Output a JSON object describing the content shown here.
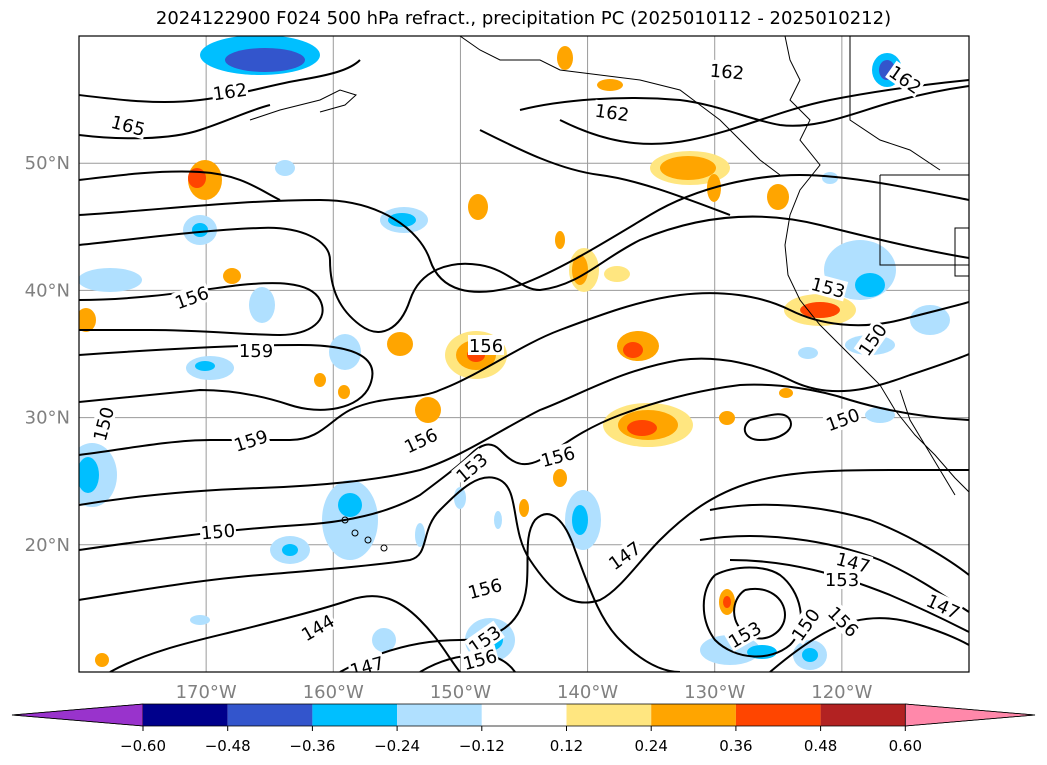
{
  "chart_data": {
    "type": "heatmap",
    "title": "2024122900 F024 500 hPa refract., precipitation PC (2025010112 - 2025010212)",
    "map": {
      "lon_range": [
        -180,
        -110
      ],
      "lat_range": [
        10,
        60
      ],
      "lon_ticks": [
        "170°W",
        "160°W",
        "150°W",
        "140°W",
        "130°W",
        "120°W"
      ],
      "lat_ticks": [
        "50°N",
        "40°N",
        "30°N",
        "20°N"
      ],
      "grid": true
    },
    "contours": {
      "field": "500 hPa refractivity",
      "levels": [
        144,
        147,
        150,
        153,
        156,
        159,
        162,
        165
      ],
      "labels": [
        {
          "text": "162"
        },
        {
          "text": "165"
        },
        {
          "text": "162"
        },
        {
          "text": "162"
        },
        {
          "text": "162"
        },
        {
          "text": "156"
        },
        {
          "text": "159"
        },
        {
          "text": "156"
        },
        {
          "text": "159"
        },
        {
          "text": "156"
        },
        {
          "text": "150"
        },
        {
          "text": "153"
        },
        {
          "text": "156"
        },
        {
          "text": "153"
        },
        {
          "text": "150"
        },
        {
          "text": "150"
        },
        {
          "text": "150"
        },
        {
          "text": "147"
        },
        {
          "text": "156"
        },
        {
          "text": "144"
        },
        {
          "text": "147"
        },
        {
          "text": "153"
        },
        {
          "text": "156"
        },
        {
          "text": "153"
        },
        {
          "text": "150"
        },
        {
          "text": "156"
        },
        {
          "text": "147"
        },
        {
          "text": "153"
        },
        {
          "text": "147"
        }
      ]
    },
    "colorbar": {
      "ticks": [
        "−0.60",
        "−0.48",
        "−0.36",
        "−0.24",
        "−0.12",
        "0.12",
        "0.24",
        "0.36",
        "0.48",
        "0.60"
      ],
      "colors": [
        "#9933cc",
        "#00008b",
        "#3355cc",
        "#00bfff",
        "#b0e0ff",
        "#ffffff",
        "#ffe680",
        "#ffa500",
        "#ff4500",
        "#b22222",
        "#ff88aa"
      ],
      "extend": "both"
    },
    "colors": {
      "contour": "#000000",
      "grid": "#9a9a9a",
      "tick_label": "#808080"
    }
  }
}
